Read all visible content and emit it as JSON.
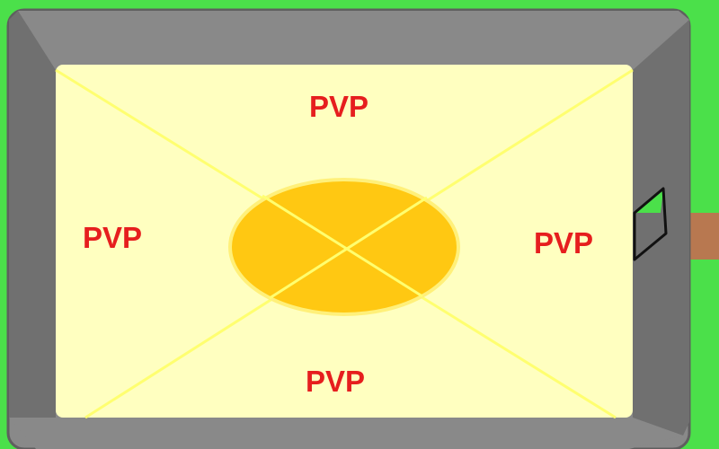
{
  "colors": {
    "grass": "#4be04a",
    "wall_top": "#898989",
    "wall_side": "#707070",
    "wall_outline": "#5f5f5f",
    "arena_floor": "#ffffc0",
    "floor_lines": "#ffff70",
    "center_circle": "#ffc812",
    "center_circle_outline": "#fff07a",
    "label_text": "#e61e1e",
    "bridge": "#b87850",
    "door_glass": "#4be04a",
    "door_frame": "#111111"
  },
  "arena": {
    "zones": [
      {
        "id": "top",
        "label": "PVP"
      },
      {
        "id": "left",
        "label": "PVP"
      },
      {
        "id": "right",
        "label": "PVP"
      },
      {
        "id": "bottom",
        "label": "PVP"
      }
    ]
  }
}
